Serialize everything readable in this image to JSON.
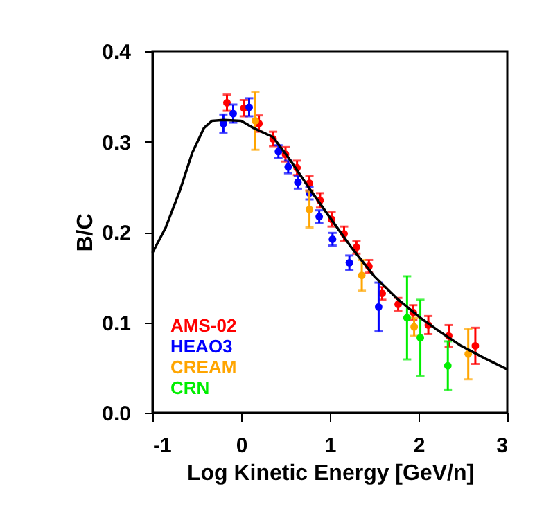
{
  "chart_data": {
    "type": "scatter",
    "xlabel": "Log Kinetic Energy [GeV/n]",
    "ylabel": "B/C",
    "xlim": [
      -1,
      3
    ],
    "ylim": [
      0,
      0.4
    ],
    "xticks": [
      -1,
      0,
      1,
      2,
      3
    ],
    "yticks": [
      {
        "value": 0,
        "label": "0.0"
      },
      {
        "value": 0.1,
        "label": "0.1"
      },
      {
        "value": 0.2,
        "label": "0.2"
      },
      {
        "value": 0.3,
        "label": "0.3"
      },
      {
        "value": 0.4,
        "label": "0.4"
      }
    ],
    "legend": "bottom left",
    "marker": "circle",
    "grid": false,
    "series": [
      {
        "name": "AMS-02",
        "color": "#ff0000",
        "x": [
          -0.16,
          0.03,
          0.2,
          0.36,
          0.5,
          0.63,
          0.77,
          0.89,
          1.02,
          1.16,
          1.3,
          1.44,
          1.59,
          1.77,
          1.94,
          2.11,
          2.34,
          2.64
        ],
        "values": [
          0.343,
          0.337,
          0.32,
          0.303,
          0.286,
          0.271,
          0.254,
          0.235,
          0.214,
          0.198,
          0.183,
          0.162,
          0.132,
          0.12,
          0.111,
          0.097,
          0.085,
          0.074
        ],
        "errors": [
          0.009,
          0.009,
          0.009,
          0.008,
          0.008,
          0.008,
          0.008,
          0.008,
          0.008,
          0.008,
          0.007,
          0.007,
          0.007,
          0.007,
          0.008,
          0.01,
          0.012,
          0.02
        ]
      },
      {
        "name": "HEAO3",
        "color": "#0000ff",
        "x": [
          -0.2,
          -0.09,
          0.09,
          0.42,
          0.53,
          0.64,
          0.77,
          0.88,
          1.03,
          1.22,
          1.55
        ],
        "values": [
          0.32,
          0.331,
          0.338,
          0.289,
          0.272,
          0.255,
          0.243,
          0.217,
          0.192,
          0.166,
          0.117
        ],
        "errors": [
          0.01,
          0.01,
          0.01,
          0.007,
          0.007,
          0.007,
          0.007,
          0.007,
          0.007,
          0.008,
          0.027
        ]
      },
      {
        "name": "CREAM",
        "color": "#ffa500",
        "x": [
          0.16,
          0.77,
          1.36,
          1.95,
          2.56
        ],
        "values": [
          0.323,
          0.225,
          0.152,
          0.095,
          0.065
        ],
        "errors": [
          0.032,
          0.02,
          0.017,
          0.01,
          0.028
        ]
      },
      {
        "name": "CRN",
        "color": "#00ee00",
        "x": [
          1.87,
          2.02,
          2.33
        ],
        "values": [
          0.105,
          0.083,
          0.052
        ],
        "errors": [
          0.046,
          0.042,
          0.027
        ]
      },
      {
        "color": "#000000",
        "type": "line",
        "marker": "none",
        "line_style": "solid",
        "x": [
          -1,
          -0.85,
          -0.69,
          -0.55,
          -0.42,
          -0.33,
          -0.2,
          0,
          0.14,
          0.36,
          0.55,
          0.77,
          1.03,
          1.25,
          1.5,
          1.75,
          2.02,
          2.25,
          2.48,
          2.75,
          3
        ],
        "values": [
          0.177,
          0.205,
          0.246,
          0.288,
          0.315,
          0.323,
          0.324,
          0.323,
          0.315,
          0.305,
          0.28,
          0.248,
          0.212,
          0.182,
          0.151,
          0.127,
          0.105,
          0.089,
          0.074,
          0.06,
          0.048
        ]
      }
    ]
  }
}
